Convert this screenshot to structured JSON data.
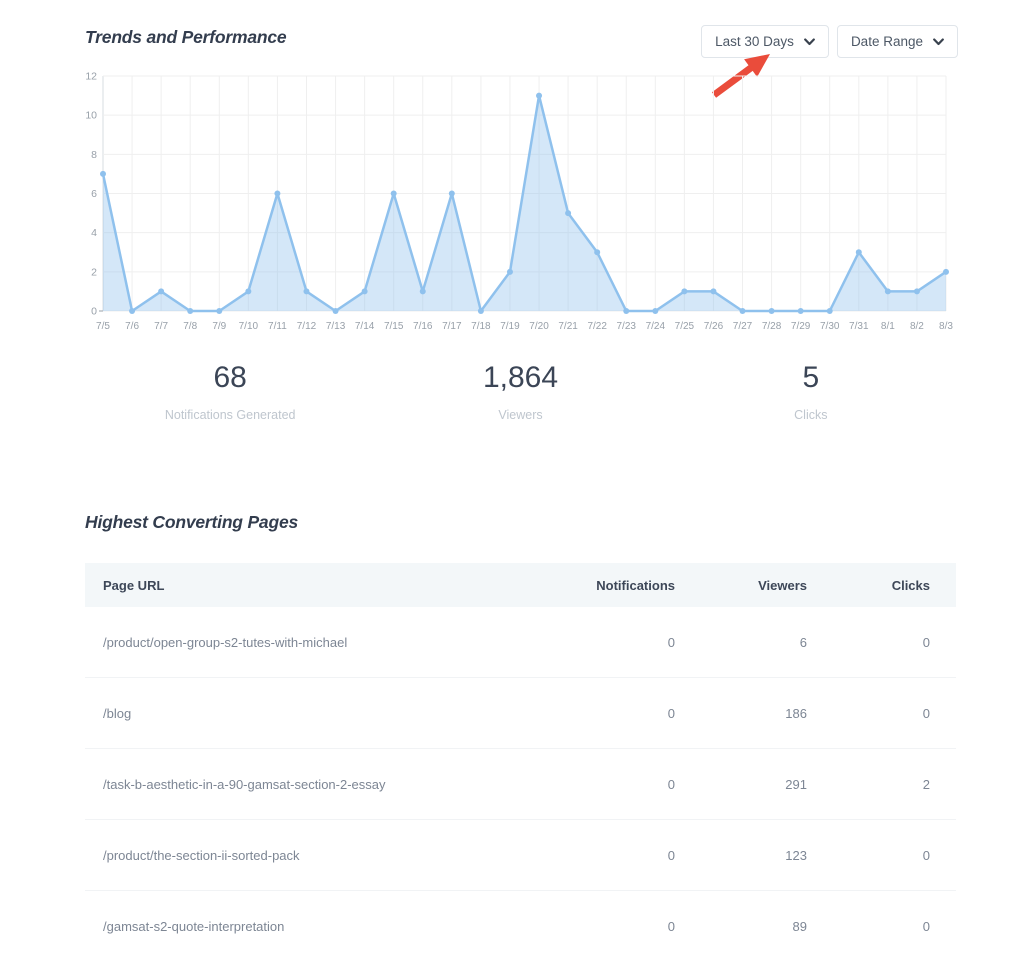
{
  "header": {
    "title": "Trends and Performance",
    "filters": [
      {
        "label": "Last 30 Days"
      },
      {
        "label": "Date Range"
      }
    ]
  },
  "annotation": {
    "arrow_color": "#ea4c3b",
    "points_at": "Last 30 Days dropdown"
  },
  "chart_data": {
    "type": "area",
    "x": [
      "7/5",
      "7/6",
      "7/7",
      "7/8",
      "7/9",
      "7/10",
      "7/11",
      "7/12",
      "7/13",
      "7/14",
      "7/15",
      "7/16",
      "7/17",
      "7/18",
      "7/19",
      "7/20",
      "7/21",
      "7/22",
      "7/23",
      "7/24",
      "7/25",
      "7/26",
      "7/27",
      "7/28",
      "7/29",
      "7/30",
      "7/31",
      "8/1",
      "8/2",
      "8/3"
    ],
    "values": [
      7,
      0,
      1,
      0,
      0,
      1,
      6,
      1,
      0,
      1,
      6,
      1,
      6,
      0,
      2,
      11,
      5,
      3,
      0,
      0,
      1,
      1,
      0,
      0,
      0,
      0,
      3,
      1,
      1,
      2
    ],
    "ylim": [
      0,
      12
    ],
    "yticks": [
      0,
      2,
      4,
      6,
      8,
      10,
      12
    ],
    "grid": true,
    "legend": false,
    "line_color": "#8fc1ed",
    "fill_color": "rgba(143,193,237,0.38)",
    "point_color": "#8fc1ed",
    "grid_color": "#efefef",
    "axis_line_color": "#d7dce1",
    "tick_text_color": "#98a0a9"
  },
  "stats": [
    {
      "value": "68",
      "label": "Notifications Generated"
    },
    {
      "value": "1,864",
      "label": "Viewers"
    },
    {
      "value": "5",
      "label": "Clicks"
    }
  ],
  "table": {
    "title": "Highest Converting Pages",
    "columns": [
      "Page URL",
      "Notifications",
      "Viewers",
      "Clicks"
    ],
    "rows": [
      {
        "url": "/product/open-group-s2-tutes-with-michael",
        "notifications": "0",
        "viewers": "6",
        "clicks": "0"
      },
      {
        "url": "/blog",
        "notifications": "0",
        "viewers": "186",
        "clicks": "0"
      },
      {
        "url": "/task-b-aesthetic-in-a-90-gamsat-section-2-essay",
        "notifications": "0",
        "viewers": "291",
        "clicks": "2"
      },
      {
        "url": "/product/the-section-ii-sorted-pack",
        "notifications": "0",
        "viewers": "123",
        "clicks": "0"
      },
      {
        "url": "/gamsat-s2-quote-interpretation",
        "notifications": "0",
        "viewers": "89",
        "clicks": "0"
      }
    ]
  }
}
